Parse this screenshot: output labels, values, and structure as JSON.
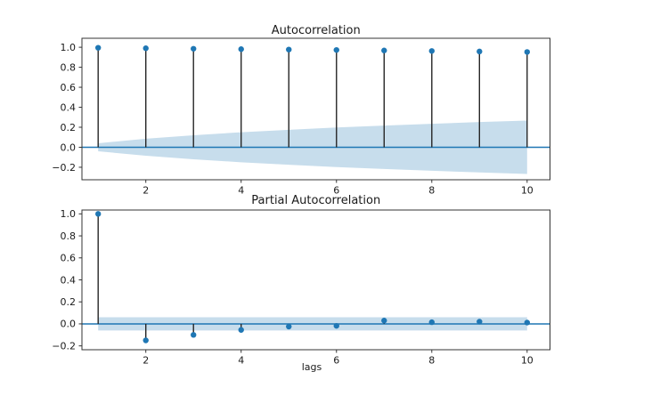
{
  "figure": {
    "background": "#ffffff",
    "accent_color": "#1f77b4",
    "band_opacity": 0.25,
    "stem_color": "#262626",
    "spine_color": "#333333",
    "text_color": "#1a1a1a"
  },
  "chart_data": [
    {
      "type": "stem",
      "title": "Autocorrelation",
      "xlabel": "",
      "x": [
        1,
        2,
        3,
        4,
        5,
        6,
        7,
        8,
        9,
        10
      ],
      "values": [
        0.995,
        0.99,
        0.985,
        0.981,
        0.977,
        0.973,
        0.968,
        0.963,
        0.958,
        0.953
      ],
      "conf_upper": [
        0.04,
        0.085,
        0.12,
        0.15,
        0.175,
        0.198,
        0.217,
        0.235,
        0.252,
        0.267
      ],
      "conf_lower": [
        -0.04,
        -0.085,
        -0.12,
        -0.15,
        -0.175,
        -0.198,
        -0.217,
        -0.235,
        -0.252,
        -0.267
      ],
      "xticks": [
        2,
        4,
        6,
        8,
        10
      ],
      "yticks": [
        1.0,
        0.8,
        0.6,
        0.4,
        0.2,
        0.0,
        -0.2
      ],
      "xlim": [
        0.66,
        10.48
      ],
      "ylim": [
        -0.325,
        1.09
      ],
      "grid": false,
      "legend": null
    },
    {
      "type": "stem",
      "title": "Partial Autocorrelation",
      "xlabel": "lags",
      "x": [
        1,
        2,
        3,
        4,
        5,
        6,
        7,
        8,
        9,
        10
      ],
      "values": [
        1.0,
        -0.15,
        -0.1,
        -0.055,
        -0.025,
        -0.018,
        0.03,
        0.015,
        0.02,
        0.012
      ],
      "conf_upper": [
        0.06,
        0.06,
        0.06,
        0.06,
        0.06,
        0.06,
        0.06,
        0.06,
        0.06,
        0.06
      ],
      "conf_lower": [
        -0.06,
        -0.06,
        -0.06,
        -0.06,
        -0.06,
        -0.06,
        -0.06,
        -0.06,
        -0.06,
        -0.06
      ],
      "xticks": [
        2,
        4,
        6,
        8,
        10
      ],
      "yticks": [
        1.0,
        0.8,
        0.6,
        0.4,
        0.2,
        0.0,
        -0.2
      ],
      "xlim": [
        0.66,
        10.48
      ],
      "ylim": [
        -0.235,
        1.035
      ],
      "grid": false,
      "legend": null
    }
  ]
}
